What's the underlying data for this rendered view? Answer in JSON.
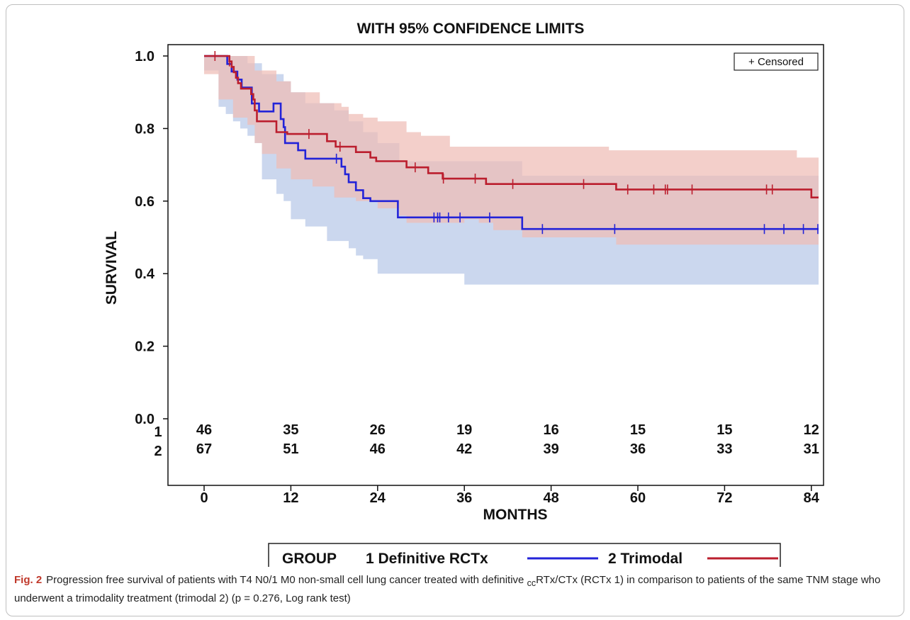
{
  "chart_data": {
    "type": "line",
    "subtype": "kaplan-meier",
    "title": "WITH 95% CONFIDENCE LIMITS",
    "xlabel": "MONTHS",
    "ylabel": "SURVIVAL",
    "xlim": [
      0,
      85
    ],
    "ylim": [
      0,
      1
    ],
    "xticks": [
      0,
      12,
      24,
      36,
      48,
      60,
      72,
      84
    ],
    "yticks": [
      0.0,
      0.2,
      0.4,
      0.6,
      0.8,
      1.0
    ],
    "ytick_labels": [
      "0.0",
      "0.2",
      "0.4",
      "0.6",
      "0.8",
      "1.0"
    ],
    "censored_legend": "+ Censored",
    "legend": {
      "title": "GROUP",
      "placement": "bottom"
    },
    "series": [
      {
        "name": "1 Definitive RCTx",
        "color": "#2323d8",
        "band_color": "#b7c8e8",
        "steps": [
          [
            0,
            1.0
          ],
          [
            3.2,
            0.978
          ],
          [
            3.8,
            0.957
          ],
          [
            4.6,
            0.935
          ],
          [
            5.2,
            0.913
          ],
          [
            6.6,
            0.869
          ],
          [
            7.6,
            0.847
          ],
          [
            9.6,
            0.869
          ],
          [
            10.6,
            0.826
          ],
          [
            11,
            0.804
          ],
          [
            11.2,
            0.76
          ],
          [
            13,
            0.74
          ],
          [
            14,
            0.717
          ],
          [
            19,
            0.695
          ],
          [
            19.5,
            0.674
          ],
          [
            20,
            0.652
          ],
          [
            21,
            0.63
          ],
          [
            22,
            0.608
          ],
          [
            23,
            0.6
          ],
          [
            26.8,
            0.555
          ],
          [
            44,
            0.523
          ],
          [
            85,
            0.523
          ]
        ],
        "lower": [
          [
            0,
            1.0
          ],
          [
            2,
            0.96
          ],
          [
            3,
            0.86
          ],
          [
            4,
            0.84
          ],
          [
            5,
            0.82
          ],
          [
            6,
            0.8
          ],
          [
            7,
            0.78
          ],
          [
            8,
            0.76
          ],
          [
            10,
            0.66
          ],
          [
            11,
            0.62
          ],
          [
            12,
            0.6
          ],
          [
            14,
            0.55
          ],
          [
            17,
            0.53
          ],
          [
            20,
            0.49
          ],
          [
            21,
            0.47
          ],
          [
            22,
            0.45
          ],
          [
            24,
            0.44
          ],
          [
            26,
            0.4
          ],
          [
            36,
            0.4
          ],
          [
            44,
            0.37
          ],
          [
            85,
            0.37
          ]
        ],
        "upper": [
          [
            0,
            1.0
          ],
          [
            4,
            1.0
          ],
          [
            6,
            0.98
          ],
          [
            8,
            0.95
          ],
          [
            11,
            0.93
          ],
          [
            12,
            0.9
          ],
          [
            14,
            0.87
          ],
          [
            18,
            0.85
          ],
          [
            20,
            0.82
          ],
          [
            22,
            0.79
          ],
          [
            24,
            0.76
          ],
          [
            27,
            0.71
          ],
          [
            36,
            0.71
          ],
          [
            44,
            0.67
          ],
          [
            85,
            0.67
          ]
        ],
        "censor_times": [
          18.3,
          31.8,
          32.3,
          32.6,
          33.8,
          35.4,
          39.5,
          46.8,
          56.8,
          77.5,
          80.2,
          82.9,
          84.9
        ]
      },
      {
        "name": "2 Trimodal",
        "color": "#bb1e2e",
        "band_color": "#eebcb6",
        "steps": [
          [
            0,
            1.0
          ],
          [
            3.5,
            0.985
          ],
          [
            3.8,
            0.97
          ],
          [
            4.1,
            0.955
          ],
          [
            4.4,
            0.94
          ],
          [
            4.7,
            0.925
          ],
          [
            5.1,
            0.91
          ],
          [
            6.5,
            0.895
          ],
          [
            6.8,
            0.88
          ],
          [
            7,
            0.85
          ],
          [
            7.3,
            0.82
          ],
          [
            10,
            0.79
          ],
          [
            11.5,
            0.785
          ],
          [
            17,
            0.765
          ],
          [
            18.2,
            0.75
          ],
          [
            21,
            0.735
          ],
          [
            23,
            0.72
          ],
          [
            23.8,
            0.71
          ],
          [
            28,
            0.693
          ],
          [
            31,
            0.677
          ],
          [
            33,
            0.662
          ],
          [
            39,
            0.647
          ],
          [
            57,
            0.632
          ],
          [
            84,
            0.61
          ],
          [
            85,
            0.61
          ]
        ],
        "lower": [
          [
            0,
            1.0
          ],
          [
            2,
            0.95
          ],
          [
            4,
            0.88
          ],
          [
            6,
            0.83
          ],
          [
            7,
            0.81
          ],
          [
            8,
            0.76
          ],
          [
            10,
            0.73
          ],
          [
            12,
            0.69
          ],
          [
            15,
            0.66
          ],
          [
            18,
            0.64
          ],
          [
            21,
            0.61
          ],
          [
            24,
            0.6
          ],
          [
            27,
            0.58
          ],
          [
            28,
            0.56
          ],
          [
            36,
            0.54
          ],
          [
            38,
            0.55
          ],
          [
            40,
            0.54
          ],
          [
            44,
            0.52
          ],
          [
            57,
            0.5
          ],
          [
            84,
            0.48
          ],
          [
            85,
            0.48
          ]
        ],
        "upper": [
          [
            0,
            1.0
          ],
          [
            5,
            1.0
          ],
          [
            7,
            0.96
          ],
          [
            10,
            0.93
          ],
          [
            12,
            0.9
          ],
          [
            16,
            0.87
          ],
          [
            19,
            0.86
          ],
          [
            20,
            0.84
          ],
          [
            22,
            0.83
          ],
          [
            24,
            0.82
          ],
          [
            28,
            0.79
          ],
          [
            30,
            0.78
          ],
          [
            34,
            0.75
          ],
          [
            52,
            0.75
          ],
          [
            56,
            0.74
          ],
          [
            57,
            0.74
          ],
          [
            81,
            0.74
          ],
          [
            82,
            0.72
          ],
          [
            85,
            0.72
          ]
        ],
        "censor_times": [
          1.5,
          3.5,
          14.5,
          18.8,
          29.2,
          33.1,
          37.5,
          42.7,
          52.5,
          58.6,
          62.2,
          63.8,
          64.1,
          67.5,
          77.8,
          78.6
        ]
      }
    ],
    "risk_table": {
      "times": [
        0,
        12,
        24,
        36,
        48,
        60,
        72,
        84
      ],
      "rows": [
        {
          "label": "1",
          "counts": [
            46,
            35,
            26,
            19,
            16,
            15,
            15,
            12
          ]
        },
        {
          "label": "2",
          "counts": [
            67,
            51,
            46,
            42,
            39,
            36,
            33,
            31
          ]
        }
      ]
    }
  },
  "caption": {
    "label": "Fig. 2",
    "text_before": "Progression free survival of patients with T4 N0/1 M0 non-small cell lung cancer treated with definitive ",
    "subscript": "cc",
    "text_after": "RTx/CTx (RCTx 1) in comparison to patients of the same TNM stage who underwent a trimodality treatment (trimodal 2) (p = 0.276, Log rank test)"
  }
}
